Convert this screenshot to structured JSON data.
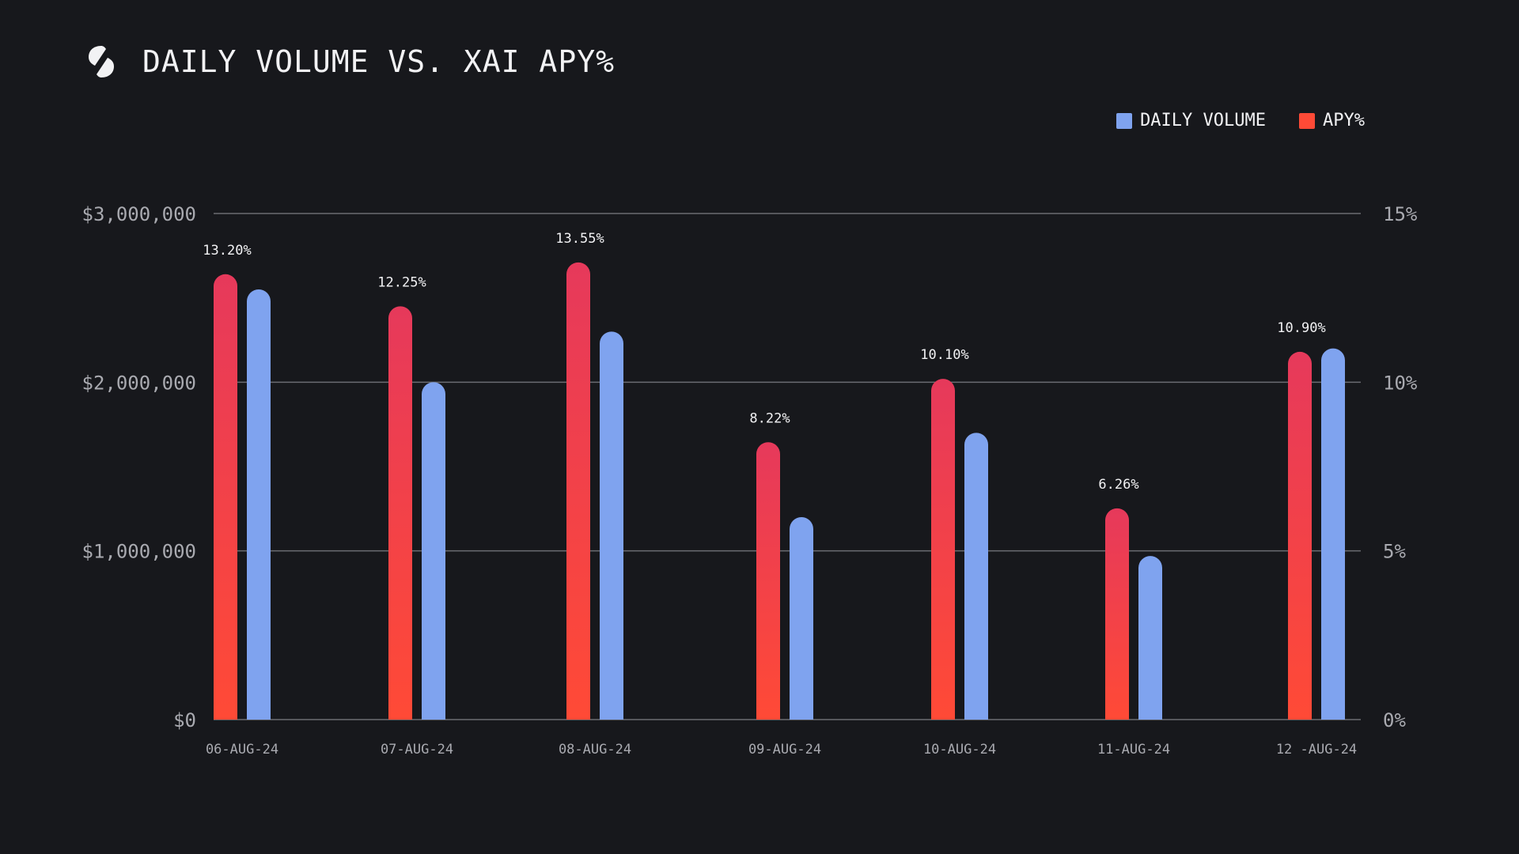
{
  "header": {
    "title": "DAILY VOLUME VS. XAI APY%",
    "logo_icon": "xai-logo-icon"
  },
  "colors": {
    "background": "#17181c",
    "volume": "#7fa3ef",
    "apy_top": "#e6395b",
    "apy_bottom": "#ff4a36",
    "grid": "#6b6c72",
    "axis_text": "#a9aab0"
  },
  "legend": {
    "volume_label": "DAILY VOLUME",
    "apy_label": "APY%"
  },
  "chart_data": {
    "type": "bar",
    "title": "DAILY VOLUME VS. XAI APY%",
    "categories": [
      "06-AUG-24",
      "07-AUG-24",
      "08-AUG-24",
      "09-AUG-24",
      "10-AUG-24",
      "11-AUG-24",
      "12 -AUG-24"
    ],
    "series": [
      {
        "name": "APY%",
        "axis": "right",
        "values": [
          13.2,
          12.25,
          13.55,
          8.22,
          10.1,
          6.26,
          10.9
        ],
        "labels": [
          "13.20%",
          "12.25%",
          "13.55%",
          "8.22%",
          "10.10%",
          "6.26%",
          "10.90%"
        ]
      },
      {
        "name": "DAILY VOLUME",
        "axis": "left",
        "values": [
          2550000,
          2000000,
          2300000,
          1200000,
          1700000,
          970000,
          2200000
        ]
      }
    ],
    "left_axis": {
      "ylim": [
        0,
        3000000
      ],
      "ticks": [
        {
          "value": 0,
          "label": "$0"
        },
        {
          "value": 1000000,
          "label": "$1,000,000"
        },
        {
          "value": 2000000,
          "label": "$2,000,000"
        },
        {
          "value": 3000000,
          "label": "$3,000,000"
        }
      ]
    },
    "right_axis": {
      "ylim": [
        0,
        15
      ],
      "ticks": [
        {
          "value": 0,
          "label": "0%"
        },
        {
          "value": 5,
          "label": "5%"
        },
        {
          "value": 10,
          "label": "10%"
        },
        {
          "value": 15,
          "label": "15%"
        }
      ]
    },
    "grid": true,
    "legend_position": "top-right"
  }
}
